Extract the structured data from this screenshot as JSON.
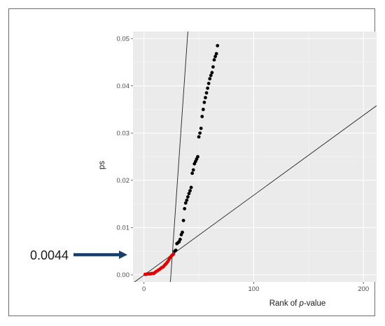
{
  "chart_data": {
    "type": "scatter",
    "xlabel": {
      "prefix": "Rank of ",
      "italic": "p",
      "suffix": "-value"
    },
    "ylabel": "ps",
    "xlim": [
      -10,
      212
    ],
    "ylim": [
      -0.0015,
      0.0515
    ],
    "x_ticks": [
      0,
      100,
      200
    ],
    "x_tick_labels": [
      "0",
      "100",
      "200"
    ],
    "y_ticks": [
      0,
      0.01,
      0.02,
      0.03,
      0.04,
      0.05
    ],
    "y_tick_labels": [
      "0.00",
      "0.01",
      "0.02",
      "0.03",
      "0.04",
      "0.05"
    ],
    "grid": true,
    "panel_color": "#ebebeb",
    "series": [
      {
        "color": "#e00000",
        "points": [
          [
            1,
            0.0001
          ],
          [
            2,
            0.0001
          ],
          [
            3,
            0.0002
          ],
          [
            4,
            0.0002
          ],
          [
            5,
            0.0002
          ],
          [
            6,
            0.0002
          ],
          [
            7,
            0.0003
          ],
          [
            8,
            0.0003
          ],
          [
            9,
            0.0003
          ],
          [
            10,
            0.0005
          ],
          [
            11,
            0.0007
          ],
          [
            12,
            0.0008
          ],
          [
            13,
            0.001
          ],
          [
            14,
            0.0011
          ],
          [
            15,
            0.0013
          ],
          [
            16,
            0.0015
          ],
          [
            17,
            0.0016
          ],
          [
            18,
            0.0018
          ],
          [
            19,
            0.0021
          ],
          [
            20,
            0.0023
          ],
          [
            21,
            0.0026
          ],
          [
            22,
            0.0029
          ],
          [
            23,
            0.0033
          ],
          [
            24,
            0.0037
          ],
          [
            25,
            0.004
          ],
          [
            26,
            0.0042
          ],
          [
            27,
            0.0044
          ]
        ]
      },
      {
        "color": "#000000",
        "points": [
          [
            28,
            0.005
          ],
          [
            29,
            0.0052
          ],
          [
            30,
            0.0066
          ],
          [
            31,
            0.0068
          ],
          [
            32,
            0.007
          ],
          [
            33,
            0.0075
          ],
          [
            34,
            0.0085
          ],
          [
            35,
            0.009
          ],
          [
            36,
            0.0115
          ],
          [
            37,
            0.014
          ],
          [
            38,
            0.0152
          ],
          [
            39,
            0.0158
          ],
          [
            40,
            0.0165
          ],
          [
            41,
            0.0172
          ],
          [
            42,
            0.0178
          ],
          [
            43,
            0.0185
          ],
          [
            44,
            0.0215
          ],
          [
            45,
            0.0222
          ],
          [
            46,
            0.0235
          ],
          [
            47,
            0.024
          ],
          [
            48,
            0.0245
          ],
          [
            49,
            0.025
          ],
          [
            50,
            0.0292
          ],
          [
            51,
            0.03
          ],
          [
            52,
            0.031
          ],
          [
            53,
            0.0335
          ],
          [
            54,
            0.035
          ],
          [
            55,
            0.0365
          ],
          [
            56,
            0.0375
          ],
          [
            57,
            0.0385
          ],
          [
            58,
            0.0395
          ],
          [
            59,
            0.0405
          ],
          [
            60,
            0.0415
          ],
          [
            61,
            0.0422
          ],
          [
            62,
            0.0428
          ],
          [
            63,
            0.044
          ],
          [
            64,
            0.0455
          ],
          [
            65,
            0.0462
          ],
          [
            66,
            0.0468
          ],
          [
            67,
            0.0485
          ]
        ]
      }
    ],
    "reference_lines": [
      {
        "color": "#222222",
        "x": [
          -10,
          212
        ],
        "y": [
          -0.00175,
          0.0358
        ]
      },
      {
        "color": "#222222",
        "x": [
          24.1,
          40.0
        ],
        "y": [
          -0.0015,
          0.0515
        ]
      }
    ],
    "annotations": [
      {
        "text": "0.0044",
        "y": 0.0044,
        "arrow_color": "#17406d"
      }
    ]
  }
}
